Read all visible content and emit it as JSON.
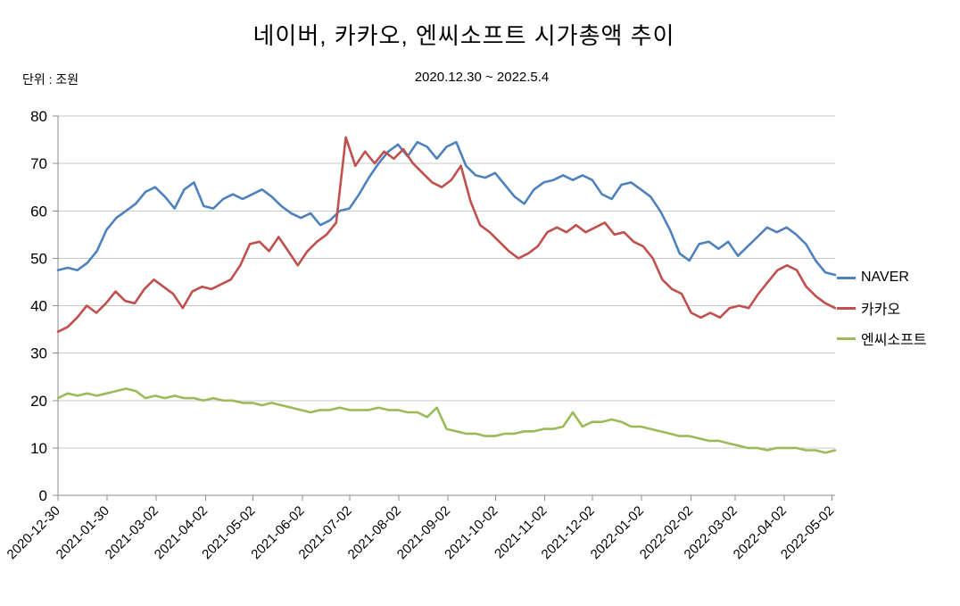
{
  "header": {
    "title": "네이버, 카카오, 엔씨소프트 시가총액 추이",
    "subtitle": "2020.12.30 ~ 2022.5.4",
    "unit_label": "단위 : 조원"
  },
  "colors": {
    "grid": "#c9c9c9",
    "axis": "#8c8c8c",
    "text": "#000000",
    "naver": "#4F81BD",
    "kakao": "#C0504D",
    "ncsoft": "#9BBB59"
  },
  "chart_data": {
    "type": "line",
    "title": "네이버, 카카오, 엔씨소프트 시가총액 추이",
    "subtitle": "2020.12.30 ~ 2022.5.4",
    "unit": "조원",
    "xlabel": "",
    "ylabel": "",
    "grid": true,
    "legend_position": "right",
    "ylim": [
      0,
      80
    ],
    "yticks": [
      0,
      10,
      20,
      30,
      40,
      50,
      60,
      70,
      80
    ],
    "x_tick_labels": [
      "2020-12-30",
      "2021-01-30",
      "2021-03-02",
      "2021-04-02",
      "2021-05-02",
      "2021-06-02",
      "2021-07-02",
      "2021-08-02",
      "2021-09-02",
      "2021-10-02",
      "2021-11-02",
      "2021-12-02",
      "2022-01-02",
      "2022-02-02",
      "2022-03-02",
      "2022-04-02",
      "2022-05-02"
    ],
    "x_tick_positions": [
      0,
      0.0633,
      0.1265,
      0.1898,
      0.251,
      0.3143,
      0.3755,
      0.4388,
      0.502,
      0.5633,
      0.6265,
      0.6878,
      0.751,
      0.8143,
      0.8714,
      0.9347,
      0.9959
    ],
    "series": [
      {
        "name": "NAVER",
        "color": "#4F81BD",
        "values": [
          47.5,
          48,
          47.5,
          49,
          51.5,
          56,
          58.5,
          60,
          61.5,
          64,
          65,
          63,
          60.5,
          64.5,
          66,
          61,
          60.5,
          62.5,
          63.5,
          62.5,
          63.5,
          64.5,
          63,
          61,
          59.5,
          58.5,
          59.5,
          57,
          58,
          60,
          60.5,
          63.5,
          67,
          70,
          72.5,
          74,
          71.5,
          74.5,
          73.5,
          71,
          73.5,
          74.5,
          69.5,
          67.5,
          67,
          68,
          65.5,
          63,
          61.5,
          64.5,
          66,
          66.5,
          67.5,
          66.5,
          67.5,
          66.5,
          63.5,
          62.5,
          65.5,
          66,
          64.5,
          63,
          60,
          56,
          51,
          49.5,
          53,
          53.5,
          52,
          53.5,
          50.5,
          52.5,
          54.5,
          56.5,
          55.5,
          56.5,
          55,
          53,
          49.5,
          47,
          46.5
        ]
      },
      {
        "name": "카카오",
        "color": "#C0504D",
        "values": [
          34.5,
          35.5,
          37.5,
          40,
          38.5,
          40.5,
          43,
          41,
          40.5,
          43.5,
          45.5,
          44,
          42.5,
          39.5,
          43,
          44,
          43.5,
          44.5,
          45.5,
          48.5,
          53,
          53.5,
          51.5,
          54.5,
          51.5,
          48.5,
          51.5,
          53.5,
          55,
          57.5,
          75.5,
          69.5,
          72.5,
          70,
          72.5,
          71,
          73,
          70,
          68,
          66,
          65,
          66.5,
          69.5,
          62,
          57,
          55.5,
          53.5,
          51.5,
          50,
          51,
          52.5,
          55.5,
          56.5,
          55.5,
          57,
          55.5,
          56.5,
          57.5,
          55,
          55.5,
          53.5,
          52.5,
          50,
          45.5,
          43.5,
          42.5,
          38.5,
          37.5,
          38.5,
          37.5,
          39.5,
          40,
          39.5,
          42.5,
          45,
          47.5,
          48.5,
          47.5,
          44,
          42,
          40.5,
          39.5
        ]
      },
      {
        "name": "엔씨소프트",
        "color": "#9BBB59",
        "values": [
          20.5,
          21.5,
          21,
          21.5,
          21,
          21.5,
          22,
          22.5,
          22,
          20.5,
          21,
          20.5,
          21,
          20.5,
          20.5,
          20,
          20.5,
          20,
          20,
          19.5,
          19.5,
          19,
          19.5,
          19,
          18.5,
          18,
          17.5,
          18,
          18,
          18.5,
          18,
          18,
          18,
          18.5,
          18,
          18,
          17.5,
          17.5,
          16.5,
          18.5,
          14,
          13.5,
          13,
          13,
          12.5,
          12.5,
          13,
          13,
          13.5,
          13.5,
          14,
          14,
          14.5,
          17.5,
          14.5,
          15.5,
          15.5,
          16,
          15.5,
          14.5,
          14.5,
          14,
          13.5,
          13,
          12.5,
          12.5,
          12,
          11.5,
          11.5,
          11,
          10.5,
          10,
          10,
          9.5,
          10,
          10,
          10,
          9.5,
          9.5,
          9,
          9.5
        ]
      }
    ]
  },
  "legend": {
    "items": [
      "NAVER",
      "카카오",
      "엔씨소프트"
    ]
  }
}
